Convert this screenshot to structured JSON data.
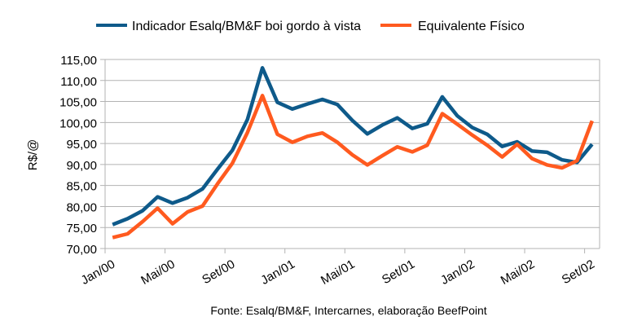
{
  "chart_data": {
    "type": "line",
    "title": "",
    "xlabel": "",
    "ylabel": "R$/@",
    "ylim": [
      70,
      115
    ],
    "yticks": [
      "70,00",
      "75,00",
      "80,00",
      "85,00",
      "90,00",
      "95,00",
      "100,00",
      "105,00",
      "110,00",
      "115,00"
    ],
    "xtick_labels": [
      "Jan/00",
      "Mai/00",
      "Set/00",
      "Jan/01",
      "Mai/01",
      "Set/01",
      "Jan/02",
      "Mai/02",
      "Set/02"
    ],
    "x_months": 33,
    "grid": true,
    "legend_position": "top",
    "series": [
      {
        "name": "Indicador Esalq/BM&F boi gordo à vista",
        "color": "#0e5a8a",
        "values": [
          75.7,
          77.1,
          79.0,
          82.3,
          80.8,
          82.1,
          84.2,
          88.9,
          93.4,
          100.7,
          113.0,
          104.8,
          103.2,
          104.4,
          105.5,
          104.3,
          100.5,
          97.3,
          99.4,
          101.1,
          98.6,
          99.7,
          106.1,
          101.6,
          98.8,
          97.2,
          94.3,
          95.4,
          93.2,
          92.9,
          91.1,
          90.5,
          94.8
        ]
      },
      {
        "name": "Equivalente Físico",
        "color": "#ff5a1f",
        "values": [
          72.6,
          73.5,
          76.4,
          79.6,
          75.9,
          78.7,
          80.1,
          85.4,
          90.3,
          97.6,
          106.4,
          97.2,
          95.3,
          96.7,
          97.5,
          95.3,
          92.3,
          89.9,
          92.1,
          94.2,
          93.0,
          94.6,
          102.1,
          99.6,
          97.0,
          94.6,
          91.8,
          94.8,
          91.4,
          89.9,
          89.2,
          90.9,
          100.4
        ]
      }
    ],
    "source": "Fonte: Esalq/BM&F, Intercarnes, elaboração BeefPoint"
  }
}
